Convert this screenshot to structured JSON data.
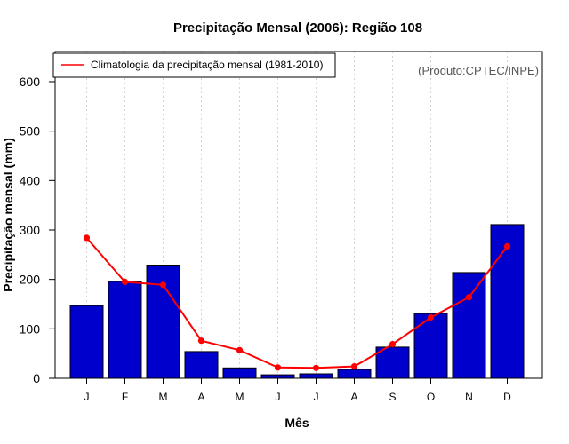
{
  "colors": {
    "bar_fill": "#0000CC",
    "bar_stroke": "#000000",
    "line": "#FF0000",
    "grid": "#D3D3D3",
    "credit": "#555555"
  },
  "chart_data": {
    "type": "bar",
    "title": "Precipitação Mensal (2006): Região 108",
    "xlabel": "Mês",
    "ylabel": "Precipitação mensal (mm)",
    "credit": "(Produto:CPTEC/INPE)",
    "categories": [
      "J",
      "F",
      "M",
      "A",
      "M",
      "J",
      "J",
      "A",
      "S",
      "O",
      "N",
      "D"
    ],
    "ylim": [
      0,
      660
    ],
    "yticks": [
      0,
      100,
      200,
      300,
      400,
      500,
      600
    ],
    "grid": "vertical dashed",
    "legend_position": "top-left",
    "series": [
      {
        "name": "Precipitação mensal (2006)",
        "type": "bar",
        "values": [
          147,
          196,
          229,
          54,
          21,
          7,
          9,
          18,
          63,
          131,
          214,
          311
        ]
      },
      {
        "name": "Climatologia da precipitação mensal (1981-2010)",
        "type": "line",
        "values": [
          284,
          195,
          189,
          76,
          57,
          22,
          21,
          24,
          69,
          123,
          164,
          267
        ]
      }
    ]
  }
}
